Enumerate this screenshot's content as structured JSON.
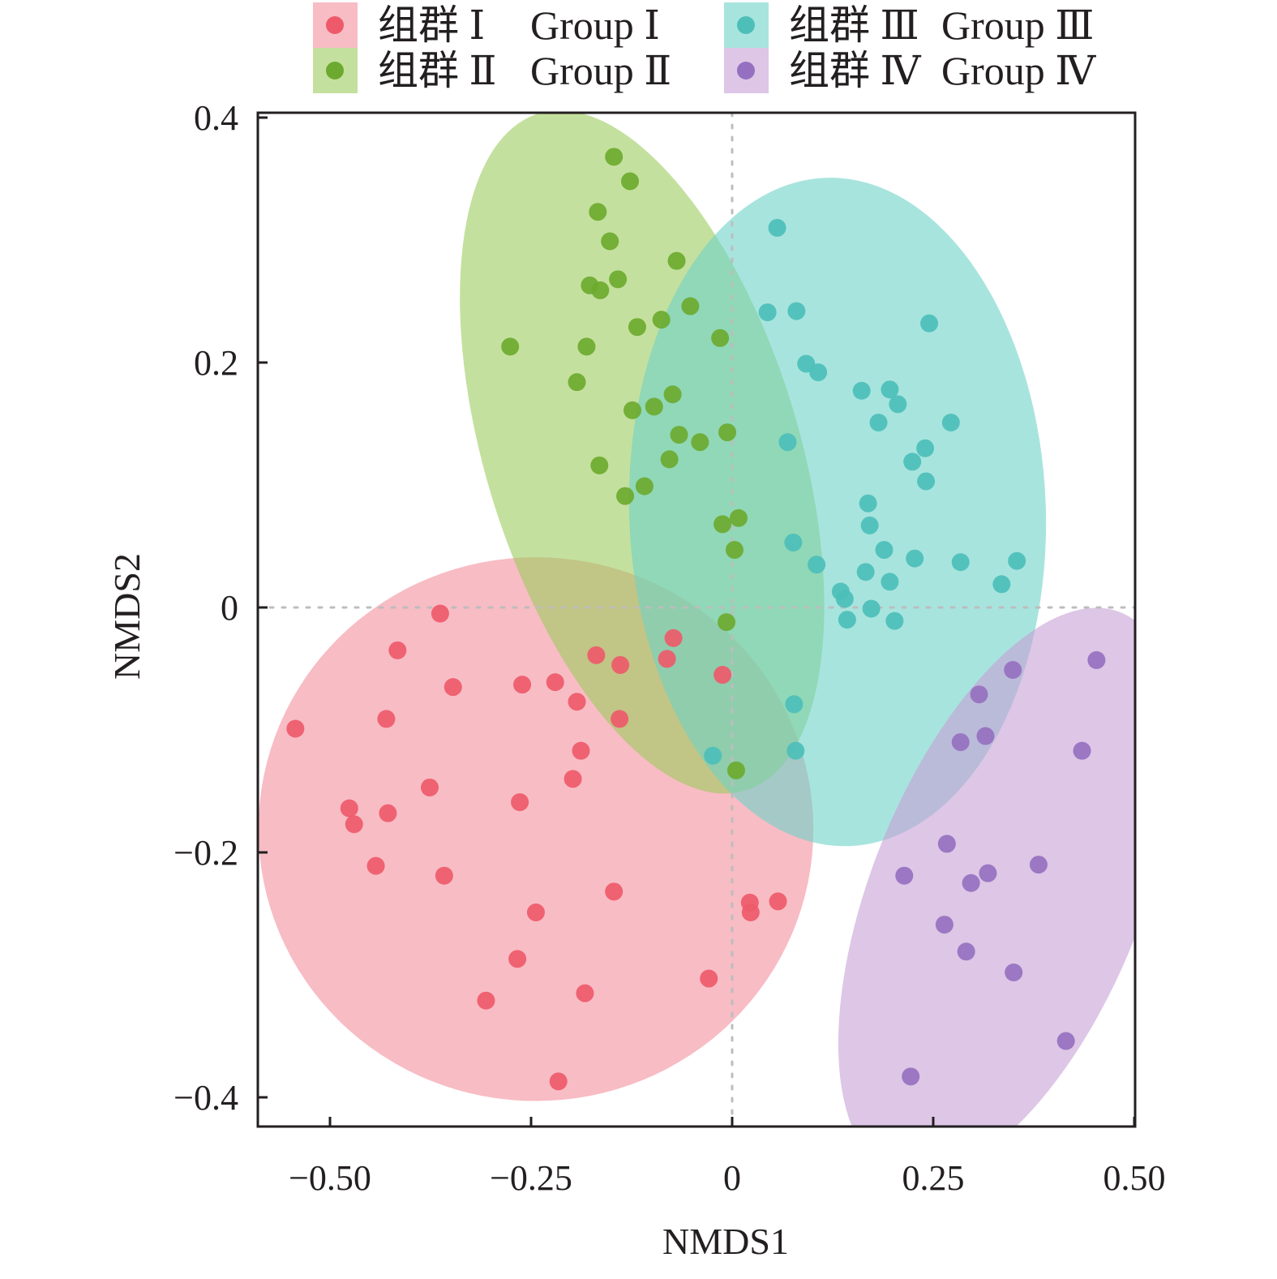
{
  "chart_data": {
    "type": "scatter",
    "title": "",
    "xlabel": "NMDS1",
    "ylabel": "NMDS2",
    "xlim": [
      -0.59,
      0.5
    ],
    "ylim": [
      -0.425,
      0.405
    ],
    "xticks": [
      -0.5,
      -0.25,
      0,
      0.25,
      0.5
    ],
    "xtick_labels": [
      "−0.50",
      "−0.25",
      "0",
      "0.25",
      "0.50"
    ],
    "yticks": [
      0.4,
      0.2,
      0,
      -0.2,
      -0.4
    ],
    "ytick_labels": [
      "0.4",
      "0.2",
      "0",
      "−0.2",
      "−0.4"
    ],
    "grid": false,
    "reference_lines": {
      "x": 0,
      "y": 0,
      "style": "dotted"
    },
    "legend": {
      "placement": "top",
      "columns": 2
    },
    "series": [
      {
        "name": "组群 Ⅰ   Group Ⅰ",
        "name_cn": "组群 Ⅰ",
        "name_en": "Group Ⅰ",
        "point_color": "#EE5A6A",
        "ellipse_color": "#F4909C",
        "ellipse": {
          "cx": -0.244,
          "cy": -0.181,
          "rx": 0.345,
          "ry": 0.222,
          "angle_deg": 0
        },
        "points": [
          [
            -0.543,
            -0.099
          ],
          [
            -0.363,
            -0.005
          ],
          [
            -0.416,
            -0.035
          ],
          [
            -0.347,
            -0.065
          ],
          [
            -0.43,
            -0.091
          ],
          [
            -0.261,
            -0.063
          ],
          [
            -0.22,
            -0.061
          ],
          [
            -0.193,
            -0.077
          ],
          [
            -0.14,
            -0.091
          ],
          [
            -0.188,
            -0.117
          ],
          [
            -0.198,
            -0.14
          ],
          [
            -0.376,
            -0.147
          ],
          [
            -0.476,
            -0.164
          ],
          [
            -0.47,
            -0.177
          ],
          [
            -0.428,
            -0.168
          ],
          [
            -0.264,
            -0.159
          ],
          [
            -0.443,
            -0.211
          ],
          [
            -0.358,
            -0.219
          ],
          [
            -0.147,
            -0.232
          ],
          [
            -0.244,
            -0.249
          ],
          [
            -0.267,
            -0.287
          ],
          [
            -0.306,
            -0.321
          ],
          [
            -0.183,
            -0.315
          ],
          [
            -0.216,
            -0.387
          ],
          [
            -0.029,
            -0.303
          ],
          [
            0.022,
            -0.241
          ],
          [
            0.023,
            -0.249
          ],
          [
            0.057,
            -0.24
          ],
          [
            -0.169,
            -0.039
          ],
          [
            -0.139,
            -0.047
          ],
          [
            -0.073,
            -0.025
          ],
          [
            -0.081,
            -0.042
          ],
          [
            -0.012,
            -0.055
          ]
        ]
      },
      {
        "name": "组群 Ⅱ   Group Ⅱ",
        "name_cn": "组群 Ⅱ",
        "name_en": "Group Ⅱ",
        "point_color": "#6CAA2F",
        "ellipse_color": "#9CCB5E",
        "ellipse": {
          "cx": -0.112,
          "cy": 0.127,
          "rx": 0.195,
          "ry": 0.289,
          "angle_deg": -17
        },
        "points": [
          [
            -0.147,
            0.368
          ],
          [
            -0.127,
            0.348
          ],
          [
            -0.167,
            0.323
          ],
          [
            -0.152,
            0.299
          ],
          [
            -0.069,
            0.283
          ],
          [
            -0.142,
            0.268
          ],
          [
            -0.177,
            0.263
          ],
          [
            -0.164,
            0.259
          ],
          [
            -0.052,
            0.246
          ],
          [
            -0.088,
            0.235
          ],
          [
            -0.118,
            0.229
          ],
          [
            -0.276,
            0.213
          ],
          [
            -0.181,
            0.213
          ],
          [
            -0.015,
            0.22
          ],
          [
            -0.193,
            0.184
          ],
          [
            -0.074,
            0.174
          ],
          [
            -0.097,
            0.164
          ],
          [
            -0.124,
            0.161
          ],
          [
            -0.066,
            0.141
          ],
          [
            -0.04,
            0.135
          ],
          [
            -0.006,
            0.143
          ],
          [
            -0.078,
            0.121
          ],
          [
            -0.165,
            0.116
          ],
          [
            -0.109,
            0.099
          ],
          [
            -0.133,
            0.091
          ],
          [
            -0.012,
            0.068
          ],
          [
            0.008,
            0.073
          ],
          [
            0.003,
            0.047
          ],
          [
            -0.007,
            -0.012
          ],
          [
            0.005,
            -0.133
          ]
        ]
      },
      {
        "name": "组群 Ⅲ   Group Ⅲ",
        "name_cn": "组群 Ⅲ",
        "name_en": "Group Ⅲ",
        "point_color": "#4DBFB8",
        "ellipse_color": "#6ED2C8",
        "ellipse": {
          "cx": 0.131,
          "cy": 0.078,
          "rx": 0.259,
          "ry": 0.273,
          "angle_deg": -2
        },
        "points": [
          [
            0.056,
            0.31
          ],
          [
            0.044,
            0.241
          ],
          [
            0.08,
            0.242
          ],
          [
            0.245,
            0.232
          ],
          [
            0.092,
            0.199
          ],
          [
            0.107,
            0.192
          ],
          [
            0.161,
            0.177
          ],
          [
            0.196,
            0.178
          ],
          [
            0.206,
            0.166
          ],
          [
            0.182,
            0.151
          ],
          [
            0.272,
            0.151
          ],
          [
            0.069,
            0.135
          ],
          [
            0.24,
            0.13
          ],
          [
            0.224,
            0.119
          ],
          [
            0.241,
            0.103
          ],
          [
            0.169,
            0.085
          ],
          [
            0.171,
            0.067
          ],
          [
            0.076,
            0.053
          ],
          [
            0.189,
            0.047
          ],
          [
            0.105,
            0.035
          ],
          [
            0.227,
            0.04
          ],
          [
            0.284,
            0.037
          ],
          [
            0.354,
            0.038
          ],
          [
            0.166,
            0.029
          ],
          [
            0.135,
            0.013
          ],
          [
            0.14,
            0.007
          ],
          [
            0.196,
            0.021
          ],
          [
            0.335,
            0.019
          ],
          [
            0.173,
            -0.001
          ],
          [
            0.143,
            -0.01
          ],
          [
            0.202,
            -0.011
          ],
          [
            0.077,
            -0.079
          ],
          [
            -0.024,
            -0.121
          ],
          [
            0.079,
            -0.117
          ]
        ]
      },
      {
        "name": "组群 Ⅳ   Group Ⅳ",
        "name_cn": "组群 Ⅳ",
        "name_en": "Group Ⅳ",
        "point_color": "#9670C0",
        "ellipse_color": "#C6A0D6",
        "ellipse": {
          "cx": 0.342,
          "cy": -0.233,
          "rx": 0.168,
          "ry": 0.247,
          "angle_deg": 22
        },
        "points": [
          [
            0.453,
            -0.043
          ],
          [
            0.349,
            -0.051
          ],
          [
            0.307,
            -0.071
          ],
          [
            0.315,
            -0.105
          ],
          [
            0.284,
            -0.11
          ],
          [
            0.435,
            -0.117
          ],
          [
            0.267,
            -0.193
          ],
          [
            0.214,
            -0.219
          ],
          [
            0.297,
            -0.225
          ],
          [
            0.318,
            -0.217
          ],
          [
            0.381,
            -0.21
          ],
          [
            0.264,
            -0.259
          ],
          [
            0.291,
            -0.281
          ],
          [
            0.35,
            -0.298
          ],
          [
            0.415,
            -0.354
          ],
          [
            0.222,
            -0.383
          ]
        ]
      }
    ]
  }
}
